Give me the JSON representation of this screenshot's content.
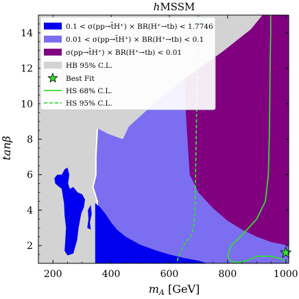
{
  "chart_data": {
    "type": "area",
    "title": "hMSSM",
    "title_parts": {
      "italic": "h",
      "normal": "MSSM"
    },
    "xlabel": "m_A [GeV]",
    "xlabel_parts": {
      "italic": "m",
      "sub": "A",
      "unit": " [GeV]"
    },
    "ylabel": "tanβ",
    "xlim": [
      150,
      1010
    ],
    "ylim": [
      1,
      15
    ],
    "x_ticks": [
      200,
      400,
      600,
      800,
      1000
    ],
    "y_ticks": [
      2,
      4,
      6,
      8,
      10,
      12,
      14
    ],
    "grid": false,
    "legend_position": "top-left",
    "colors": {
      "region_high": "#0000ee",
      "region_mid": "#7b6ef0",
      "region_low": "#800080",
      "hb_excluded": "#d3d3d3",
      "hs_contour": "#33dd33",
      "best_fit_fill": "#33dd33"
    },
    "legend": [
      {
        "label": "0.1 < σ(pp→t̄H⁺) × BR(H⁺→tb) < 1.7746",
        "style": "patch",
        "color": "#0000ee"
      },
      {
        "label": "0.01 < σ(pp→t̄H⁺) × BR(H⁺→tb) < 0.1",
        "style": "patch",
        "color": "#7b6ef0"
      },
      {
        "label": "σ(pp→t̄H⁺) × BR(H⁺→tb) < 0.01",
        "style": "patch",
        "color": "#800080"
      },
      {
        "label": "HB 95% C.L.",
        "style": "patch",
        "color": "#d3d3d3"
      },
      {
        "label": "Best Fit",
        "style": "star",
        "color": "#33dd33"
      },
      {
        "label": "HS 68% C.L.",
        "style": "solid-line",
        "color": "#33dd33"
      },
      {
        "label": "HS 95% C.L.",
        "style": "dashed-line",
        "color": "#33dd33"
      }
    ],
    "series": [
      {
        "role": "hb-95-cl-excluded",
        "boundary": [
          [
            150,
            15
          ],
          [
            920,
            15
          ],
          [
            880,
            14.2
          ],
          [
            780,
            12.9
          ],
          [
            660,
            11.5
          ],
          [
            560,
            10.2
          ],
          [
            460,
            8.7
          ],
          [
            440,
            8.0
          ],
          [
            390,
            8.3
          ],
          [
            350,
            8.6
          ],
          [
            345,
            7.0
          ],
          [
            345,
            6.0
          ],
          [
            335,
            5.3
          ],
          [
            350,
            4.5
          ],
          [
            355,
            1.0
          ],
          [
            150,
            1.0
          ]
        ]
      },
      {
        "role": "sigma-0.01-0.1",
        "boundary": [
          [
            355,
            1.0
          ],
          [
            355,
            4.5
          ],
          [
            340,
            5.3
          ],
          [
            350,
            6.0
          ],
          [
            350,
            7.0
          ],
          [
            355,
            8.6
          ],
          [
            390,
            8.3
          ],
          [
            440,
            8.0
          ],
          [
            460,
            8.7
          ],
          [
            560,
            10.2
          ],
          [
            660,
            11.5
          ],
          [
            780,
            12.9
          ],
          [
            880,
            14.2
          ],
          [
            920,
            15
          ],
          [
            1010,
            15
          ],
          [
            1010,
            1.0
          ]
        ]
      },
      {
        "role": "sigma-below-0.01",
        "boundary": [
          [
            652,
            11.4
          ],
          [
            655,
            10.0
          ],
          [
            662,
            8.0
          ],
          [
            670,
            6.0
          ],
          [
            700,
            5.0
          ],
          [
            750,
            4.1
          ],
          [
            800,
            3.4
          ],
          [
            850,
            2.9
          ],
          [
            900,
            2.5
          ],
          [
            950,
            2.2
          ],
          [
            1010,
            2.0
          ],
          [
            1010,
            15
          ],
          [
            920,
            15
          ],
          [
            880,
            14.2
          ],
          [
            780,
            12.9
          ]
        ]
      },
      {
        "role": "sigma-0.1-1.7746-main",
        "boundary": [
          [
            345,
            4.4
          ],
          [
            345,
            1.0
          ],
          [
            730,
            1.0
          ],
          [
            700,
            1.15
          ],
          [
            650,
            1.3
          ],
          [
            600,
            1.5
          ],
          [
            550,
            1.75
          ],
          [
            500,
            2.05
          ],
          [
            450,
            2.5
          ],
          [
            420,
            2.9
          ],
          [
            400,
            3.3
          ],
          [
            380,
            3.8
          ],
          [
            360,
            4.2
          ]
        ]
      },
      {
        "role": "sigma-0.1-1.7746-island",
        "boundary": [
          [
            205,
            5.8
          ],
          [
            215,
            6.0
          ],
          [
            230,
            6.0
          ],
          [
            240,
            6.3
          ],
          [
            250,
            6.4
          ],
          [
            256,
            6.0
          ],
          [
            252,
            5.5
          ],
          [
            258,
            5.2
          ],
          [
            270,
            5.3
          ],
          [
            285,
            5.0
          ],
          [
            300,
            4.9
          ],
          [
            310,
            4.6
          ],
          [
            307,
            4.2
          ],
          [
            297,
            3.8
          ],
          [
            288,
            3.0
          ],
          [
            283,
            2.3
          ],
          [
            270,
            1.55
          ],
          [
            250,
            1.45
          ],
          [
            240,
            1.7
          ],
          [
            242,
            2.2
          ],
          [
            245,
            3.0
          ],
          [
            240,
            3.7
          ],
          [
            238,
            4.4
          ],
          [
            233,
            4.9
          ],
          [
            230,
            5.2
          ],
          [
            218,
            5.35
          ],
          [
            208,
            5.5
          ]
        ]
      },
      {
        "role": "sigma-0.1-1.7746-sliver",
        "boundary": [
          [
            320,
            4.0
          ],
          [
            330,
            4.3
          ],
          [
            333,
            3.8
          ],
          [
            327,
            3.3
          ],
          [
            330,
            2.9
          ],
          [
            318,
            3.0
          ],
          [
            322,
            3.5
          ]
        ]
      },
      {
        "name": "HS 68% C.L.",
        "style": "solid",
        "points": [
          [
            948,
            15
          ],
          [
            948,
            14.0
          ],
          [
            946,
            12.0
          ],
          [
            945,
            10.0
          ],
          [
            943,
            8.0
          ],
          [
            940,
            6.0
          ],
          [
            930,
            4.5
          ],
          [
            900,
            3.5
          ],
          [
            850,
            2.6
          ],
          [
            812,
            2.0
          ],
          [
            800,
            1.4
          ],
          [
            812,
            1.1
          ],
          [
            842,
            1.05
          ],
          [
            875,
            1.2
          ],
          [
            900,
            1.4
          ],
          [
            950,
            1.4
          ],
          [
            985,
            1.25
          ],
          [
            1000,
            1.1
          ]
        ]
      },
      {
        "name": "HS 95% C.L.",
        "style": "dashed",
        "points": [
          [
            700,
            15
          ],
          [
            700,
            14.0
          ],
          [
            697,
            12.0
          ],
          [
            694,
            10.0
          ],
          [
            692,
            8.0
          ],
          [
            690,
            6.0
          ],
          [
            688,
            4.0
          ],
          [
            683,
            3.0
          ],
          [
            673,
            2.5
          ],
          [
            655,
            2.2
          ],
          [
            640,
            1.7
          ],
          [
            630,
            1.3
          ],
          [
            625,
            1.0
          ]
        ]
      },
      {
        "name": "Best Fit",
        "style": "star",
        "points": [
          [
            1000,
            1.6
          ]
        ]
      }
    ]
  }
}
